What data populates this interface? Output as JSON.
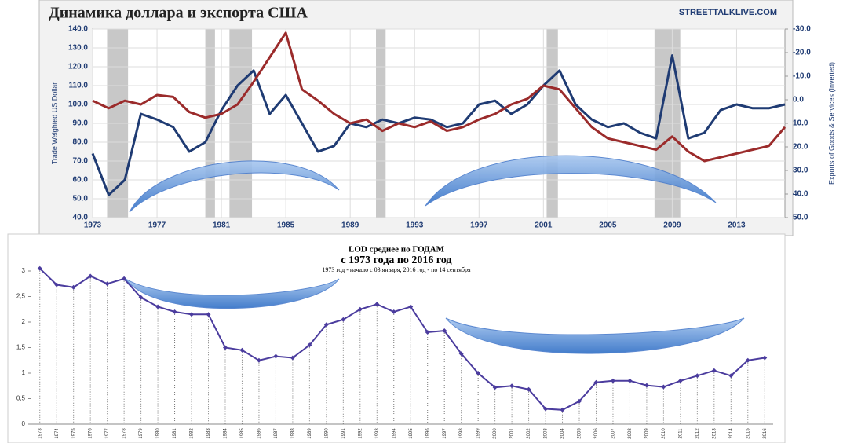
{
  "chart_data": [
    {
      "type": "line",
      "title": "Динамика доллара и экспорта США",
      "source": "STREETTALKLIVE.COM",
      "ylabel": "Trade Weighted US Dollar",
      "y2label": "Exports of Goods & Services (Inverted)",
      "x": [
        1973,
        1974,
        1975,
        1976,
        1977,
        1978,
        1979,
        1980,
        1981,
        1982,
        1983,
        1984,
        1985,
        1986,
        1987,
        1988,
        1989,
        1990,
        1991,
        1992,
        1993,
        1994,
        1995,
        1996,
        1997,
        1998,
        1999,
        2000,
        2001,
        2002,
        2003,
        2004,
        2005,
        2006,
        2007,
        2008,
        2009,
        2010,
        2011,
        2012,
        2013,
        2014,
        2015,
        2016
      ],
      "xlim": [
        1973,
        2016
      ],
      "xticks": [
        1973,
        1977,
        1981,
        1985,
        1989,
        1993,
        1997,
        2001,
        2005,
        2009,
        2013
      ],
      "ylim": [
        40,
        140
      ],
      "yticks": [
        {
          "value": 40,
          "label": "40.0"
        },
        {
          "value": 50,
          "label": "50.0"
        },
        {
          "value": 60,
          "label": "60.0"
        },
        {
          "value": 70,
          "label": "70.0"
        },
        {
          "value": 80,
          "label": "80.0"
        },
        {
          "value": 90,
          "label": "90.0"
        },
        {
          "value": 100,
          "label": "100.0"
        },
        {
          "value": 110,
          "label": "110.0"
        },
        {
          "value": 120,
          "label": "120.0"
        },
        {
          "value": 130,
          "label": "130.0"
        },
        {
          "value": 140,
          "label": "140.0"
        }
      ],
      "y2lim": [
        50,
        -30
      ],
      "y2ticks": [
        {
          "value": -30,
          "label": "-30.0"
        },
        {
          "value": -20,
          "label": "-20.0"
        },
        {
          "value": -10,
          "label": "-10.0"
        },
        {
          "value": 0,
          "label": "0.0"
        },
        {
          "value": 10,
          "label": "10.0"
        },
        {
          "value": 20,
          "label": "20.0"
        },
        {
          "value": 30,
          "label": "30.0"
        },
        {
          "value": 40,
          "label": "40.0"
        },
        {
          "value": 50,
          "label": "50.0"
        }
      ],
      "grid": true,
      "shaded_periods": [
        [
          1973.9,
          1975.2
        ],
        [
          1980.0,
          1980.6
        ],
        [
          1981.5,
          1982.9
        ],
        [
          1990.6,
          1991.2
        ],
        [
          2001.2,
          2001.9
        ],
        [
          2007.9,
          2009.5
        ]
      ],
      "shade_color": "#c8c8c8",
      "series": [
        {
          "name": "Trade Weighted US Dollar",
          "color": "#1f3b73",
          "values": [
            74,
            52,
            60,
            95,
            92,
            88,
            75,
            80,
            97,
            110,
            118,
            95,
            105,
            90,
            75,
            78,
            90,
            88,
            92,
            90,
            93,
            92,
            88,
            90,
            100,
            102,
            95,
            100,
            110,
            118,
            100,
            92,
            88,
            90,
            85,
            82,
            126,
            82,
            85,
            97,
            100,
            98,
            98,
            100
          ]
        },
        {
          "name": "Exports of Goods & Services (Inverted)",
          "color": "#9b2b2b",
          "axis": "y2",
          "values": [
            0.4,
            3.6,
            0.4,
            2,
            -2,
            -1.2,
            5.2,
            7.6,
            6,
            2,
            -7.6,
            -18,
            -28.4,
            -4.4,
            0.4,
            6,
            10,
            8.4,
            13.2,
            10,
            11.6,
            9.2,
            13.2,
            11.6,
            8.4,
            6,
            2,
            -0.4,
            -6,
            -4.4,
            3.6,
            11.6,
            16.4,
            18,
            19.6,
            21.2,
            15.6,
            22,
            26,
            24.4,
            22.8,
            21.2,
            19.6,
            11.6
          ]
        }
      ]
    },
    {
      "type": "line",
      "title": "LOD среднее по ГОДАМ",
      "subtitle": "с 1973 года по 2016 год",
      "note": "1973 год - начало с 03 января, 2016 год - по 14 сентября",
      "categories": [
        "1973",
        "1974",
        "1975",
        "1976",
        "1977",
        "1978",
        "1979",
        "1980",
        "1981",
        "1982",
        "1983",
        "1984",
        "1985",
        "1986",
        "1987",
        "1988",
        "1989",
        "1990",
        "1991",
        "1992",
        "1993",
        "1994",
        "1995",
        "1996",
        "1997",
        "1998",
        "1999",
        "2000",
        "2001",
        "2002",
        "2003",
        "2004",
        "2005",
        "2006",
        "2007",
        "2008",
        "2009",
        "2010",
        "2011",
        "2012",
        "2013",
        "2014",
        "2015",
        "2016"
      ],
      "values": [
        3.05,
        2.73,
        2.68,
        2.9,
        2.75,
        2.85,
        2.48,
        2.3,
        2.2,
        2.15,
        2.15,
        1.5,
        1.45,
        1.25,
        1.33,
        1.3,
        1.55,
        1.95,
        2.05,
        2.25,
        2.35,
        2.2,
        2.3,
        1.8,
        1.83,
        1.38,
        1.0,
        0.72,
        0.75,
        0.68,
        0.3,
        0.28,
        0.45,
        0.82,
        0.85,
        0.85,
        0.76,
        0.73,
        0.85,
        0.95,
        1.05,
        0.95,
        1.25,
        1.3
      ],
      "color": "#4b3c9e",
      "ylim": [
        0,
        3
      ],
      "yticks": [
        0,
        {
          "value": 0.5,
          "label": "0,5"
        },
        1,
        {
          "value": 1.5,
          "label": "1,5"
        },
        2,
        {
          "value": 2.5,
          "label": "2,5"
        },
        3
      ],
      "grid": false
    }
  ]
}
